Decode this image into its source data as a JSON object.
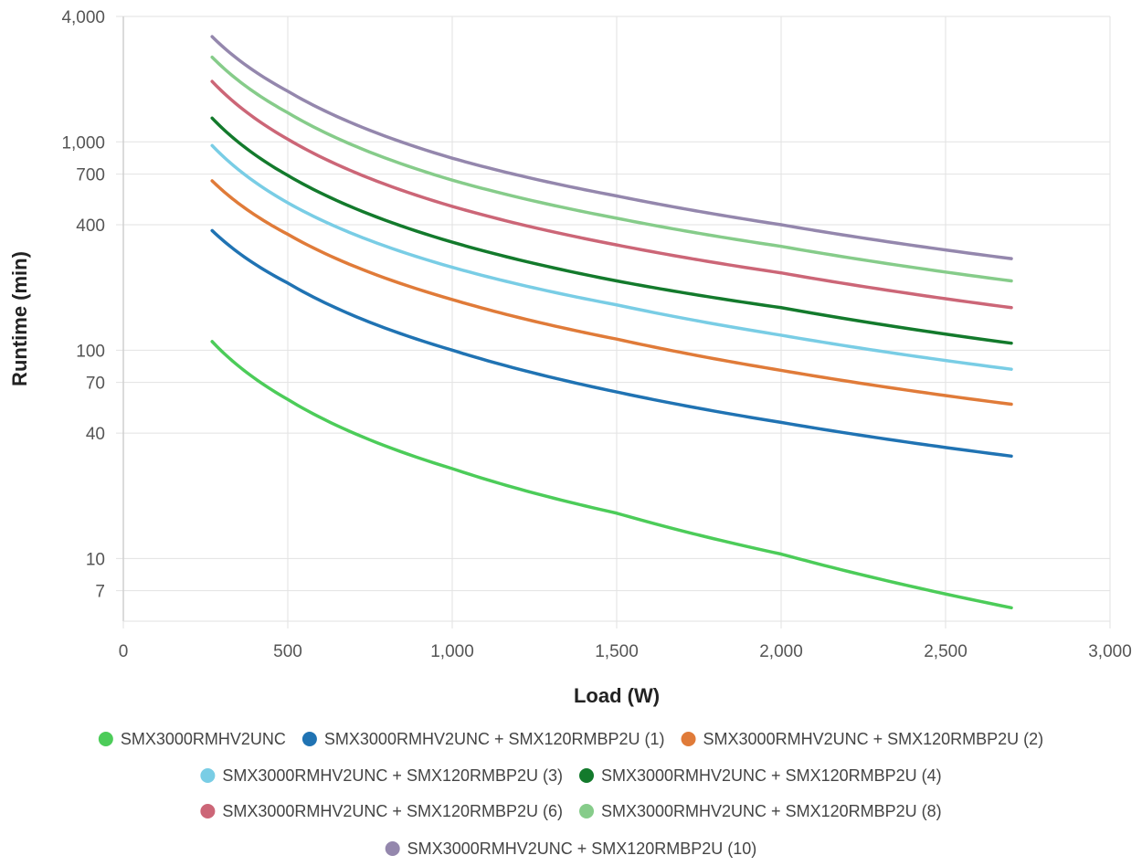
{
  "chart_data": {
    "type": "line",
    "title": "",
    "xlabel": "Load (W)",
    "ylabel": "Runtime (min)",
    "xlim": [
      0,
      3000
    ],
    "ylim": [
      5,
      4000
    ],
    "y_scale": "log",
    "grid": true,
    "legend_position": "bottom",
    "x_ticks": [
      0,
      500,
      1000,
      1500,
      2000,
      2500,
      3000
    ],
    "x_tick_labels": [
      "0",
      "500",
      "1,000",
      "1,500",
      "2,000",
      "2,500",
      "3,000"
    ],
    "y_ticks": [
      7,
      10,
      40,
      70,
      100,
      400,
      700,
      1000,
      4000
    ],
    "y_tick_labels": [
      "7",
      "10",
      "40",
      "70",
      "100",
      "400",
      "700",
      "1,000",
      "4,000"
    ],
    "x": [
      270,
      500,
      1000,
      1500,
      2000,
      2700
    ],
    "series": [
      {
        "name": "SMX3000RMHV2UNC",
        "color": "#4ccc59",
        "values": [
          110,
          58,
          27,
          16.5,
          10.5,
          5.8
        ]
      },
      {
        "name": "SMX3000RMHV2UNC + SMX120RMBP2U (1)",
        "color": "#2073b3",
        "values": [
          375,
          210,
          100,
          63,
          45,
          31
        ]
      },
      {
        "name": "SMX3000RMHV2UNC + SMX120RMBP2U (2)",
        "color": "#e07b39",
        "values": [
          650,
          360,
          175,
          113,
          80,
          55
        ]
      },
      {
        "name": "SMX3000RMHV2UNC + SMX120RMBP2U (3)",
        "color": "#79cde5",
        "values": [
          960,
          510,
          250,
          165,
          118,
          81
        ]
      },
      {
        "name": "SMX3000RMHV2UNC + SMX120RMBP2U (4)",
        "color": "#137a2c",
        "values": [
          1300,
          690,
          330,
          215,
          160,
          108
        ]
      },
      {
        "name": "SMX3000RMHV2UNC + SMX120RMBP2U (6)",
        "color": "#cc6677",
        "values": [
          1950,
          1030,
          490,
          320,
          235,
          160
        ]
      },
      {
        "name": "SMX3000RMHV2UNC + SMX120RMBP2U (8)",
        "color": "#86cc8a",
        "values": [
          2550,
          1380,
          655,
          430,
          315,
          215
        ]
      },
      {
        "name": "SMX3000RMHV2UNC + SMX120RMBP2U (10)",
        "color": "#9487ad",
        "values": [
          3200,
          1750,
          835,
          550,
          400,
          275
        ]
      }
    ]
  }
}
